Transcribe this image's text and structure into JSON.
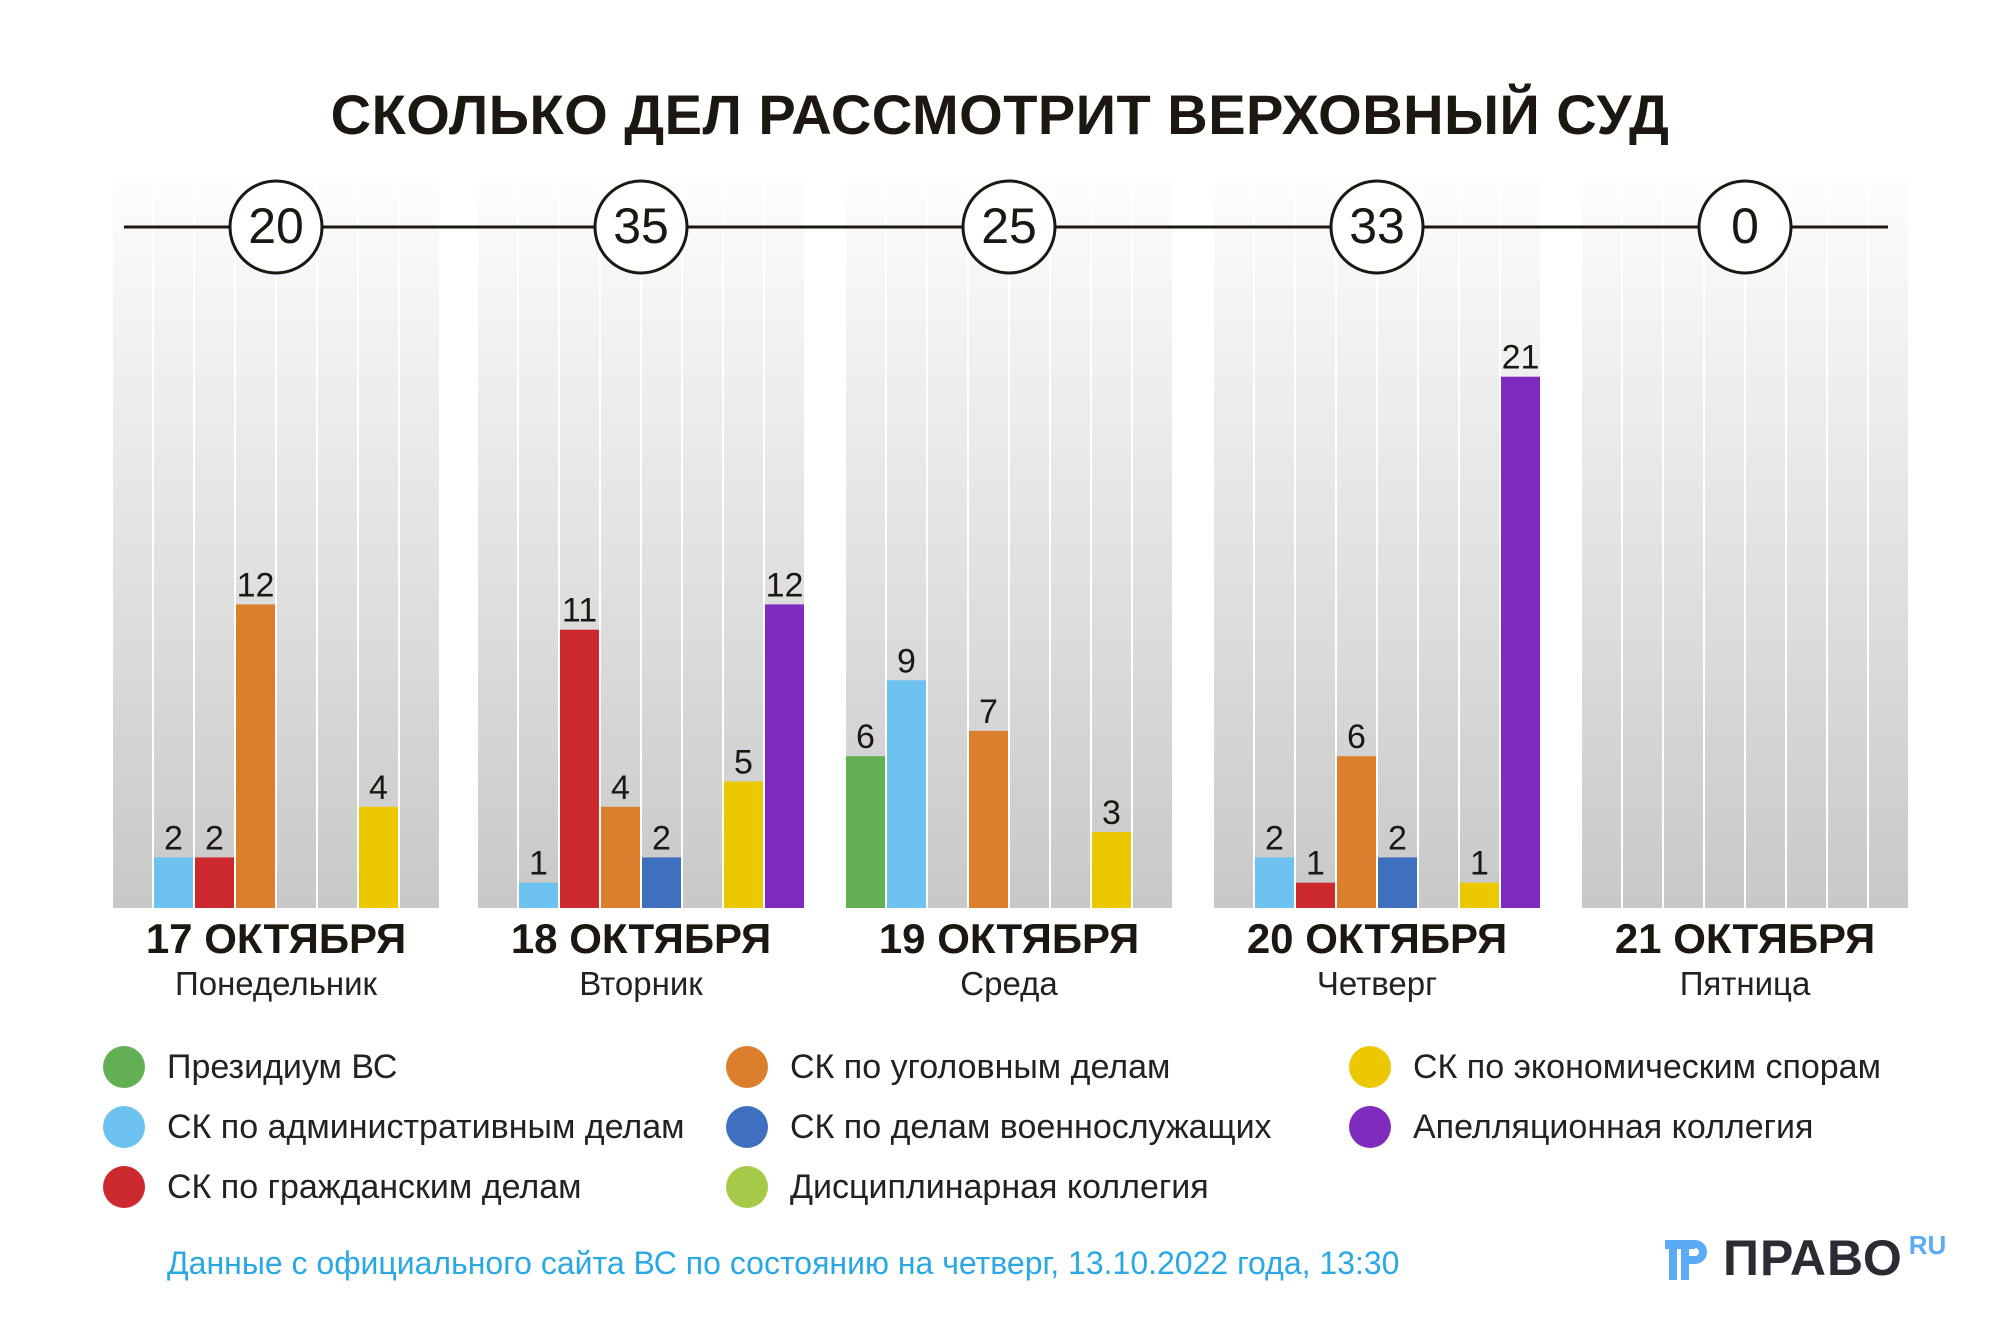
{
  "chart_data": {
    "type": "bar",
    "title": "СКОЛЬКО ДЕЛ РАССМОТРИТ ВЕРХОВНЫЙ СУД",
    "ylim": [
      0,
      22
    ],
    "categories": [
      {
        "date": "17 ОКТЯБРЯ",
        "weekday": "Понедельник",
        "total": "20"
      },
      {
        "date": "18 ОКТЯБРЯ",
        "weekday": "Вторник",
        "total": "35"
      },
      {
        "date": "19 ОКТЯБРЯ",
        "weekday": "Среда",
        "total": "25"
      },
      {
        "date": "20 ОКТЯБРЯ",
        "weekday": "Четверг",
        "total": "33"
      },
      {
        "date": "21 ОКТЯБРЯ",
        "weekday": "Пятница",
        "total": "0"
      }
    ],
    "series": [
      {
        "name": "Президиум ВС",
        "color": "#63b054",
        "values": [
          0,
          0,
          6,
          0,
          0
        ]
      },
      {
        "name": "СК по административным делам",
        "color": "#6ec2f0",
        "values": [
          2,
          1,
          9,
          2,
          0
        ]
      },
      {
        "name": "СК по гражданским делам",
        "color": "#cd2a30",
        "values": [
          2,
          11,
          0,
          1,
          0
        ]
      },
      {
        "name": "СК по уголовным делам",
        "color": "#db7f2d",
        "values": [
          12,
          4,
          7,
          6,
          0
        ]
      },
      {
        "name": "СК по делам военнослужащих",
        "color": "#3f70bf",
        "values": [
          0,
          2,
          0,
          2,
          0
        ]
      },
      {
        "name": "Дисциплинарная коллегия",
        "color": "#a6c94a",
        "values": [
          0,
          0,
          0,
          0,
          0
        ]
      },
      {
        "name": "СК по экономическим спорам",
        "color": "#ebc800",
        "values": [
          4,
          5,
          3,
          1,
          0
        ]
      },
      {
        "name": "Апелляционная коллегия",
        "color": "#7f2bbd",
        "values": [
          0,
          12,
          0,
          21,
          0
        ]
      }
    ]
  },
  "footer": "Данные с официального сайта ВС по состоянию на четверг, 13.10.2022 года, 13:30",
  "logo": {
    "text": "ПРАВО",
    "suffix": "RU"
  }
}
